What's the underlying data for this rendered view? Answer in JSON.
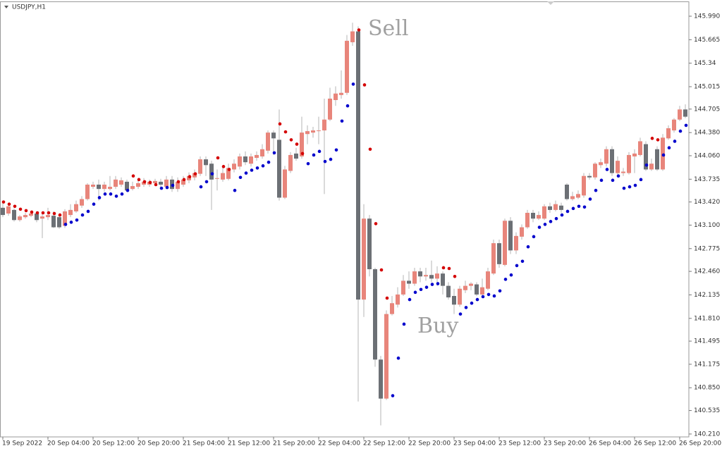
{
  "chart_data": {
    "type": "candlestick",
    "symbol": "USDJPY,H1",
    "annotations": [
      "Sell",
      "Buy"
    ],
    "up_color": "#e8857b",
    "down_color": "#6c7075",
    "wick_color": "#b4b4b4",
    "sar_above_color": "#d40000",
    "sar_below_color": "#0000cc",
    "ylim": [
      140.17,
      146.185
    ],
    "yticks": [
      {
        "value": 145.99,
        "label": "145.990"
      },
      145.665,
      145.34,
      145.015,
      144.705,
      {
        "value": 144.38,
        "label": "144.380"
      },
      {
        "value": 144.06,
        "label": "144.060"
      },
      143.735,
      {
        "value": 143.42,
        "label": "143.420"
      },
      {
        "value": 143.1,
        "label": "143.100"
      },
      142.775,
      {
        "value": 142.46,
        "label": "142.460"
      },
      142.135,
      {
        "value": 141.81,
        "label": "141.810"
      },
      141.495,
      141.175,
      {
        "value": 140.85,
        "label": "140.850"
      },
      140.535,
      {
        "value": 140.21,
        "label": "140.210"
      }
    ],
    "categories": [
      "19 Sep 2022",
      null,
      null,
      null,
      null,
      null,
      null,
      null,
      "20 Sep 04:00",
      null,
      null,
      null,
      null,
      null,
      null,
      null,
      "20 Sep 12:00",
      null,
      null,
      null,
      null,
      null,
      null,
      null,
      "20 Sep 20:00",
      null,
      null,
      null,
      null,
      null,
      null,
      null,
      "21 Sep 04:00",
      null,
      null,
      null,
      null,
      null,
      null,
      null,
      "21 Sep 12:00",
      null,
      null,
      null,
      null,
      null,
      null,
      null,
      "21 Sep 20:00",
      null,
      null,
      null,
      null,
      null,
      null,
      null,
      "22 Sep 04:00",
      null,
      null,
      null,
      null,
      null,
      null,
      null,
      "22 Sep 12:00",
      null,
      null,
      null,
      null,
      null,
      null,
      null,
      "22 Sep 20:00",
      null,
      null,
      null,
      null,
      null,
      null,
      null,
      "23 Sep 04:00",
      null,
      null,
      null,
      null,
      null,
      null,
      null,
      "23 Sep 12:00",
      null,
      null,
      null,
      null,
      null,
      null,
      null,
      "23 Sep 20:00",
      null,
      null,
      null,
      null,
      null,
      null,
      null,
      "26 Sep 04:00",
      null,
      null,
      null,
      null,
      null,
      null,
      null,
      "26 Sep 12:00",
      null,
      null,
      null,
      null,
      null,
      null,
      null,
      "26 Sep 20:00",
      null
    ],
    "open": [
      143.34,
      143.26,
      143.31,
      143.17,
      143.21,
      143.23,
      143.26,
      143.19,
      143.21,
      143.23,
      143.21,
      143.09,
      143.24,
      143.29,
      143.37,
      143.46,
      143.63,
      143.66,
      143.6,
      143.6,
      143.63,
      143.66,
      143.7,
      143.6,
      143.63,
      143.66,
      143.66,
      143.68,
      143.7,
      143.63,
      143.73,
      143.6,
      143.66,
      143.72,
      143.76,
      143.81,
      144.01,
      143.95,
      143.74,
      143.73,
      143.74,
      143.87,
      143.91,
      144.05,
      143.95,
      144.03,
      144.05,
      144.13,
      144.38,
      144.28,
      143.48,
      143.85,
      144.09,
      144.05,
      144.36,
      144.38,
      144.4,
      144.41,
      144.56,
      144.83,
      144.9,
      144.93,
      145.63,
      145.78,
      142.07,
      143.19,
      142.49,
      141.24,
      140.7,
      141.87,
      142.0,
      142.14,
      142.33,
      142.29,
      142.46,
      142.39,
      142.41,
      142.36,
      142.43,
      142.26,
      142.12,
      142.0,
      142.2,
      142.26,
      142.28,
      142.14,
      142.22,
      142.43,
      142.85,
      142.55,
      143.16,
      142.75,
      142.94,
      143.07,
      143.27,
      143.19,
      143.19,
      143.36,
      143.31,
      143.37,
      143.66,
      143.46,
      143.48,
      143.51,
      143.78,
      143.76,
      143.93,
      143.95,
      144.15,
      143.82,
      143.82,
      143.82,
      144.05,
      144.07,
      144.22,
      143.87,
      144.15,
      143.87,
      144.3,
      144.41,
      144.56,
      144.7
    ],
    "high": [
      143.44,
      143.39,
      143.33,
      143.24,
      143.27,
      143.29,
      143.29,
      143.29,
      143.34,
      143.29,
      143.24,
      143.32,
      143.39,
      143.44,
      143.5,
      143.68,
      143.7,
      143.73,
      143.7,
      143.78,
      143.78,
      143.76,
      143.73,
      143.7,
      143.73,
      143.75,
      143.73,
      143.74,
      143.74,
      143.78,
      143.78,
      143.76,
      143.78,
      143.83,
      143.87,
      144.05,
      144.05,
      143.99,
      143.87,
      143.89,
      143.95,
      144.01,
      144.09,
      144.12,
      144.09,
      144.12,
      144.22,
      144.41,
      144.41,
      144.7,
      143.92,
      144.11,
      144.17,
      144.6,
      144.48,
      144.46,
      144.6,
      144.85,
      145.0,
      145.02,
      145.24,
      145.73,
      145.9,
      145.85,
      143.39,
      143.24,
      142.51,
      141.29,
      141.92,
      142.12,
      142.24,
      142.41,
      142.46,
      142.51,
      142.51,
      142.51,
      142.61,
      142.53,
      142.46,
      142.31,
      142.22,
      142.26,
      142.33,
      142.31,
      142.31,
      142.36,
      142.51,
      142.9,
      142.9,
      143.19,
      143.21,
      143.0,
      143.11,
      143.31,
      143.31,
      143.29,
      143.39,
      143.41,
      143.44,
      143.41,
      143.68,
      143.56,
      143.58,
      143.82,
      143.82,
      143.97,
      144.02,
      144.19,
      144.19,
      144.05,
      143.89,
      144.11,
      144.15,
      144.31,
      144.26,
      144.02,
      144.19,
      144.36,
      144.48,
      144.58,
      144.75,
      144.77
    ],
    "low": [
      143.21,
      143.23,
      143.15,
      143.15,
      143.19,
      143.21,
      143.14,
      142.92,
      143.17,
      143.06,
      143.05,
      143.06,
      143.21,
      143.27,
      143.34,
      143.44,
      143.6,
      143.44,
      143.56,
      143.58,
      143.6,
      143.63,
      143.56,
      143.58,
      143.6,
      143.63,
      143.63,
      143.65,
      143.6,
      143.6,
      143.56,
      143.56,
      143.63,
      143.68,
      143.72,
      143.78,
      143.78,
      143.31,
      143.58,
      143.7,
      143.72,
      143.83,
      143.87,
      143.93,
      143.91,
      143.99,
      144.02,
      144.09,
      144.07,
      143.44,
      143.46,
      143.82,
      143.99,
      144.02,
      144.22,
      144.31,
      144.22,
      143.53,
      144.54,
      144.75,
      144.85,
      144.9,
      145.58,
      140.66,
      141.83,
      142.39,
      141.14,
      140.33,
      140.68,
      141.85,
      141.96,
      142.12,
      142.22,
      142.26,
      142.31,
      142.33,
      142.31,
      142.26,
      142.14,
      142.07,
      141.87,
      141.97,
      142.16,
      142.2,
      142.12,
      142.12,
      142.2,
      142.41,
      142.51,
      142.53,
      142.7,
      142.7,
      142.9,
      143.05,
      143.14,
      143.17,
      143.17,
      143.27,
      143.29,
      143.27,
      143.44,
      143.44,
      143.46,
      143.48,
      143.73,
      143.73,
      143.89,
      143.91,
      143.78,
      143.8,
      143.78,
      143.8,
      143.82,
      144.05,
      143.85,
      143.85,
      143.85,
      143.85,
      144.28,
      144.38,
      144.54,
      144.58
    ],
    "close": [
      143.24,
      143.36,
      143.17,
      143.22,
      143.24,
      143.26,
      143.17,
      143.22,
      143.24,
      143.07,
      143.07,
      143.29,
      143.31,
      143.39,
      143.46,
      143.66,
      143.66,
      143.6,
      143.66,
      143.63,
      143.73,
      143.72,
      143.58,
      143.64,
      143.68,
      143.7,
      143.7,
      143.71,
      143.66,
      143.73,
      143.6,
      143.7,
      143.73,
      143.78,
      143.82,
      144.01,
      143.93,
      143.73,
      143.75,
      143.82,
      143.89,
      143.95,
      144.05,
      143.97,
      144.05,
      144.07,
      144.15,
      144.38,
      144.3,
      143.48,
      143.87,
      144.07,
      144.02,
      144.38,
      144.4,
      144.41,
      144.41,
      144.56,
      144.85,
      144.92,
      144.93,
      145.65,
      145.78,
      142.07,
      143.19,
      142.49,
      141.24,
      140.7,
      141.87,
      142.02,
      142.14,
      142.33,
      142.29,
      142.46,
      142.39,
      142.41,
      142.36,
      142.43,
      142.26,
      142.1,
      142.0,
      142.22,
      142.26,
      142.29,
      142.14,
      142.24,
      142.46,
      142.85,
      142.56,
      143.16,
      142.75,
      142.95,
      143.07,
      143.27,
      143.19,
      143.24,
      143.36,
      143.31,
      143.39,
      143.31,
      143.46,
      143.5,
      143.53,
      143.78,
      143.76,
      143.95,
      143.97,
      144.15,
      143.82,
      143.99,
      143.84,
      144.07,
      144.09,
      144.26,
      143.87,
      143.95,
      143.87,
      144.31,
      144.44,
      144.56,
      144.7,
      144.6
    ],
    "sar": [
      143.42,
      143.39,
      143.36,
      143.32,
      143.3,
      143.28,
      143.27,
      143.27,
      143.27,
      143.26,
      143.24,
      143.11,
      143.14,
      143.17,
      143.24,
      143.29,
      143.39,
      143.48,
      143.53,
      143.53,
      143.5,
      143.53,
      143.58,
      143.78,
      143.73,
      143.7,
      143.69,
      143.66,
      143.61,
      143.62,
      143.65,
      143.7,
      143.73,
      143.77,
      143.81,
      143.63,
      143.7,
      143.81,
      144.03,
      143.91,
      143.87,
      143.58,
      143.76,
      143.82,
      143.86,
      143.89,
      143.92,
      143.97,
      144.1,
      144.5,
      144.39,
      144.28,
      144.22,
      144.09,
      143.95,
      144.07,
      144.12,
      143.98,
      144.01,
      144.14,
      144.54,
      144.75,
      145.05,
      145.8,
      145.04,
      144.15,
      143.12,
      142.48,
      142.09,
      140.74,
      141.26,
      141.73,
      142.07,
      142.17,
      142.21,
      142.24,
      142.28,
      142.29,
      142.51,
      142.5,
      142.39,
      141.87,
      141.96,
      142.02,
      142.07,
      142.11,
      142.14,
      142.12,
      142.19,
      142.35,
      142.41,
      142.54,
      142.6,
      142.8,
      142.94,
      143.07,
      143.11,
      143.15,
      143.19,
      143.24,
      143.29,
      143.33,
      143.36,
      143.35,
      143.46,
      143.58,
      143.72,
      143.87,
      143.72,
      143.78,
      143.61,
      143.63,
      143.65,
      143.73,
      143.93,
      144.3,
      144.28,
      144.07,
      144.17,
      144.26,
      144.4,
      144.48
    ],
    "sar_side": [
      "above",
      "above",
      "above",
      "above",
      "above",
      "above",
      "above",
      "above",
      "above",
      "above",
      "above",
      "below",
      "below",
      "below",
      "below",
      "below",
      "below",
      "below",
      "below",
      "below",
      "below",
      "below",
      "below",
      "above",
      "above",
      "above",
      "above",
      "above",
      "below",
      "below",
      "below",
      "above",
      "above",
      "above",
      "above",
      "below",
      "below",
      "below",
      "above",
      "above",
      "above",
      "below",
      "below",
      "below",
      "below",
      "below",
      "below",
      "below",
      "below",
      "above",
      "above",
      "above",
      "above",
      "above",
      "below",
      "below",
      "below",
      "below",
      "below",
      "below",
      "below",
      "below",
      "below",
      "above",
      "above",
      "above",
      "above",
      "above",
      "above",
      "below",
      "below",
      "below",
      "below",
      "below",
      "below",
      "below",
      "below",
      "below",
      "above",
      "above",
      "above",
      "below",
      "below",
      "below",
      "below",
      "below",
      "below",
      "below",
      "below",
      "below",
      "below",
      "below",
      "below",
      "below",
      "below",
      "below",
      "below",
      "below",
      "below",
      "below",
      "below",
      "below",
      "below",
      "below",
      "below",
      "below",
      "below",
      "below",
      "below",
      "below",
      "below",
      "below",
      "below",
      "below",
      "below",
      "above",
      "above",
      "below",
      "below",
      "below",
      "below",
      "below"
    ]
  }
}
